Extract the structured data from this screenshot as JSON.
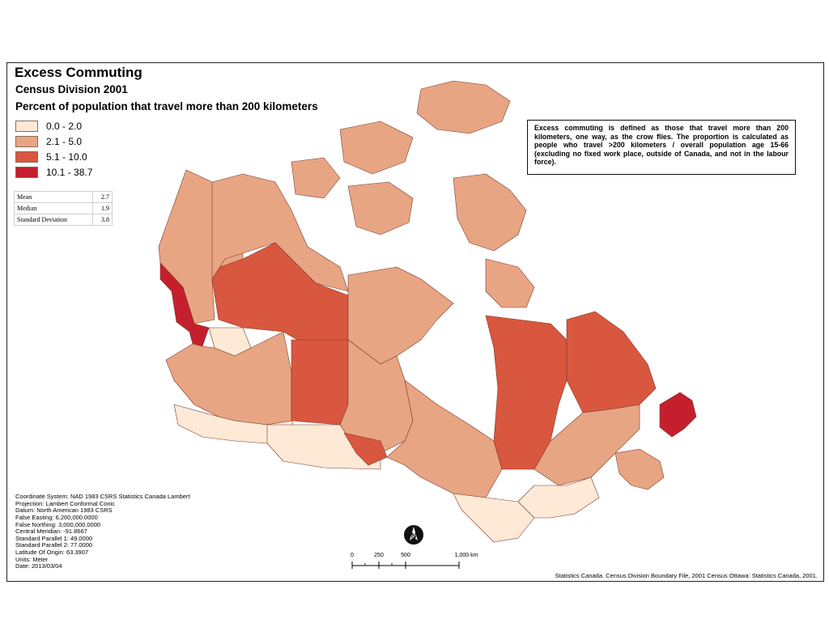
{
  "title": "Excess Commuting",
  "subtitle": "Census Division 2001",
  "map_heading": "Percent of population that travel more than 200 kilometers",
  "legend": [
    {
      "label": "0.0 - 2.0",
      "color": "#fde9d6"
    },
    {
      "label": "2.1 - 5.0",
      "color": "#e8a584"
    },
    {
      "label": "5.1 - 10.0",
      "color": "#d9573e"
    },
    {
      "label": "10.1 - 38.7",
      "color": "#c51f2d"
    }
  ],
  "stats": [
    {
      "label": "Mean",
      "value": "2.7"
    },
    {
      "label": "Median",
      "value": "1.9"
    },
    {
      "label": "Standard Deviation",
      "value": "3.8"
    }
  ],
  "note": "Excess commuting is defined as those that travel more than 200 kilometers, one way, as the crow flies. The proportion is calculated as people who travel >200 kilometers / overall population age 15-66 (excluding no fixed work place, outside of Canada, and not in the labour force).",
  "projection_info": [
    "Coordinate System: NAD 1983 CSRS Statistics Canada Lambert",
    "Projection: Lambert Conformal Conic",
    "Datum: North American 1983 CSRS",
    "False Easting: 6,200,000.0000",
    "False Northing: 3,000,000.0000",
    "Central Meridian: -91.8667",
    "Standard Parallel 1: 49.0000",
    "Standard Parallel 2: 77.0000",
    "Latitude Of Origin: 63.3907",
    "Units: Meter",
    "Date: 2013/03/04"
  ],
  "scale_bar": {
    "labels": [
      "0",
      "250",
      "500",
      "1,000 km"
    ]
  },
  "north_arrow": {
    "letter": "N"
  },
  "source": "Statistics Canada. Census Division Boundary File, 2001 Census Ottawa: Statistics Canada, 2001.",
  "colors": {
    "boundary": "#7a3a2a",
    "water": "#ffffff"
  }
}
